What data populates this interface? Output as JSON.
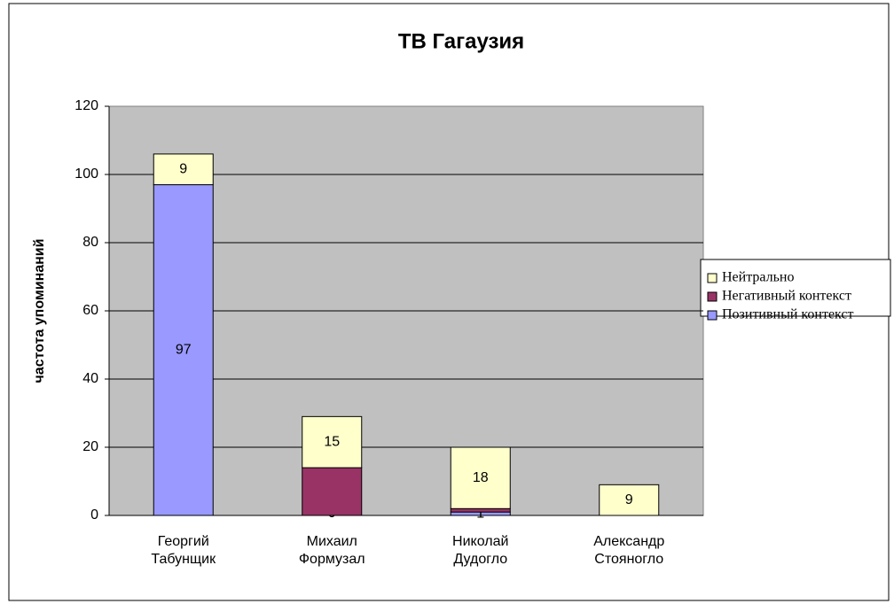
{
  "chart_data": {
    "type": "stacked_bar",
    "title": "ТВ Гагаузия",
    "y_label": "частота упоминаний",
    "categories": [
      [
        "Георгий",
        "Табунщик"
      ],
      [
        "Михаил",
        "Формузал"
      ],
      [
        "Николай",
        "Дудогло"
      ],
      [
        "Александр",
        "Стояногло"
      ]
    ],
    "series": [
      {
        "name": "Позитивный контекст",
        "color": "#9999ff",
        "values": [
          97,
          0,
          1,
          0
        ],
        "value_labels": [
          "97",
          "0",
          "1",
          null
        ]
      },
      {
        "name": "Негативный контекст",
        "color": "#993366",
        "values": [
          0,
          14,
          1,
          0
        ]
      },
      {
        "name": "Нейтрально",
        "color": "#ffffcc",
        "values": [
          9,
          15,
          18,
          9
        ],
        "value_labels": [
          "9",
          "15",
          "18",
          "9"
        ]
      }
    ],
    "ylim": [
      0,
      120
    ],
    "yticks": [
      0,
      20,
      40,
      60,
      80,
      100,
      120
    ],
    "grid": true,
    "legend": "right"
  }
}
